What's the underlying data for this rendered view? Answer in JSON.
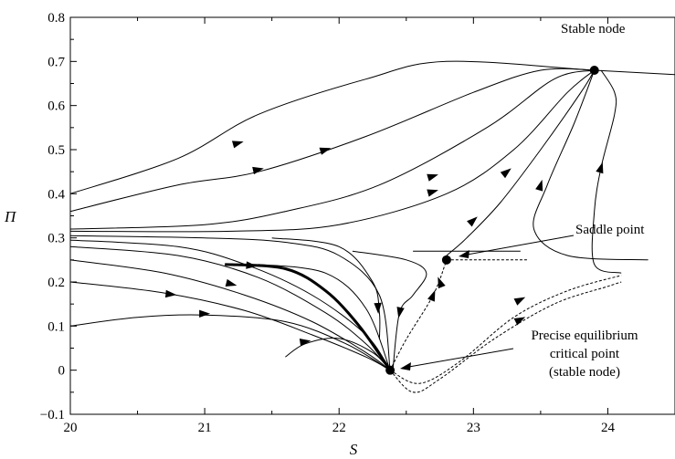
{
  "chart_data": {
    "type": "line",
    "title": "",
    "xlabel": "S",
    "ylabel": "Π",
    "xlim": [
      20,
      24.5
    ],
    "ylim": [
      -0.1,
      0.8
    ],
    "x_ticks": [
      "20",
      "21",
      "22",
      "23",
      "24"
    ],
    "y_ticks": [
      "−0.1",
      "0",
      "0.1",
      "0.2",
      "0.3",
      "0.4",
      "0.5",
      "0.6",
      "0.7",
      "0.8"
    ],
    "grid": false,
    "points": [
      {
        "name": "stable-node",
        "x": 23.9,
        "y": 0.68
      },
      {
        "name": "saddle-point",
        "x": 22.8,
        "y": 0.25
      },
      {
        "name": "precise-equilibrium",
        "x": 22.38,
        "y": 0.0
      }
    ],
    "annotations": [
      {
        "name": "stable-node-label",
        "lines": [
          "Stable node"
        ]
      },
      {
        "name": "saddle-point-label",
        "lines": [
          "Saddle point"
        ]
      },
      {
        "name": "equilibrium-label",
        "lines": [
          "Precise equilibrium",
          "critical point",
          "(stable node)"
        ]
      }
    ],
    "series": [
      {
        "style": "solid",
        "points": [
          [
            20,
            0.4
          ],
          [
            20.8,
            0.48
          ],
          [
            21.4,
            0.58
          ],
          [
            22.2,
            0.66
          ],
          [
            22.8,
            0.7
          ],
          [
            23.9,
            0.68
          ],
          [
            24.5,
            0.67
          ]
        ]
      },
      {
        "style": "solid",
        "points": [
          [
            20,
            0.36
          ],
          [
            20.8,
            0.42
          ],
          [
            21.4,
            0.45
          ],
          [
            22.2,
            0.53
          ],
          [
            23.0,
            0.63
          ],
          [
            23.5,
            0.68
          ],
          [
            23.9,
            0.68
          ]
        ]
      },
      {
        "style": "solid",
        "points": [
          [
            20,
            0.32
          ],
          [
            21.0,
            0.33
          ],
          [
            21.6,
            0.36
          ],
          [
            22.3,
            0.42
          ],
          [
            23.1,
            0.55
          ],
          [
            23.6,
            0.66
          ],
          [
            23.9,
            0.68
          ]
        ]
      },
      {
        "style": "solid",
        "points": [
          [
            20,
            0.315
          ],
          [
            21.2,
            0.315
          ],
          [
            22.0,
            0.33
          ],
          [
            22.8,
            0.4
          ],
          [
            23.3,
            0.5
          ],
          [
            23.7,
            0.63
          ],
          [
            23.9,
            0.68
          ]
        ]
      },
      {
        "style": "solid",
        "points": [
          [
            22.8,
            0.26
          ],
          [
            22.95,
            0.3
          ],
          [
            23.2,
            0.38
          ],
          [
            23.5,
            0.5
          ],
          [
            23.8,
            0.63
          ],
          [
            23.9,
            0.68
          ]
        ]
      },
      {
        "style": "solid",
        "points": [
          [
            24.3,
            0.25
          ],
          [
            23.7,
            0.26
          ],
          [
            23.45,
            0.32
          ],
          [
            23.55,
            0.42
          ],
          [
            23.75,
            0.56
          ],
          [
            23.9,
            0.68
          ]
        ]
      },
      {
        "style": "solid",
        "points": [
          [
            24.1,
            0.22
          ],
          [
            23.9,
            0.24
          ],
          [
            23.9,
            0.36
          ],
          [
            23.95,
            0.46
          ],
          [
            24.05,
            0.58
          ],
          [
            24.05,
            0.63
          ],
          [
            23.95,
            0.68
          ]
        ]
      },
      {
        "style": "solid",
        "points": [
          [
            20,
            0.305
          ],
          [
            21.0,
            0.3
          ],
          [
            21.6,
            0.29
          ],
          [
            22.0,
            0.26
          ],
          [
            22.3,
            0.17
          ],
          [
            22.38,
            0.0
          ]
        ]
      },
      {
        "style": "solid",
        "points": [
          [
            20,
            0.295
          ],
          [
            20.8,
            0.28
          ],
          [
            21.3,
            0.24
          ],
          [
            21.8,
            0.17
          ],
          [
            22.2,
            0.08
          ],
          [
            22.38,
            0.0
          ]
        ]
      },
      {
        "style": "solid",
        "points": [
          [
            20,
            0.28
          ],
          [
            20.8,
            0.26
          ],
          [
            21.4,
            0.21
          ],
          [
            21.9,
            0.13
          ],
          [
            22.2,
            0.06
          ],
          [
            22.38,
            0.0
          ]
        ]
      },
      {
        "style": "solid",
        "points": [
          [
            20,
            0.25
          ],
          [
            20.7,
            0.22
          ],
          [
            21.3,
            0.17
          ],
          [
            21.8,
            0.11
          ],
          [
            22.2,
            0.04
          ],
          [
            22.38,
            0.0
          ]
        ]
      },
      {
        "style": "solid",
        "points": [
          [
            20,
            0.2
          ],
          [
            20.7,
            0.175
          ],
          [
            21.3,
            0.135
          ],
          [
            21.8,
            0.08
          ],
          [
            22.2,
            0.03
          ],
          [
            22.38,
            0.0
          ]
        ]
      },
      {
        "style": "solid",
        "points": [
          [
            20,
            0.1
          ],
          [
            20.5,
            0.12
          ],
          [
            21.0,
            0.125
          ],
          [
            21.6,
            0.11
          ],
          [
            22.05,
            0.06
          ],
          [
            22.38,
            0.0
          ]
        ]
      },
      {
        "style": "solid",
        "points": [
          [
            21.6,
            0.03
          ],
          [
            21.75,
            0.06
          ],
          [
            22.0,
            0.072
          ],
          [
            22.25,
            0.04
          ],
          [
            22.38,
            0.0
          ]
        ]
      },
      {
        "style": "thick",
        "points": [
          [
            21.15,
            0.24
          ],
          [
            21.6,
            0.23
          ],
          [
            21.9,
            0.18
          ],
          [
            22.15,
            0.1
          ],
          [
            22.38,
            0.0
          ]
        ]
      },
      {
        "style": "solid",
        "points": [
          [
            21.4,
            0.24
          ],
          [
            21.9,
            0.22
          ],
          [
            22.2,
            0.14
          ],
          [
            22.38,
            0.0
          ]
        ]
      },
      {
        "style": "solid",
        "points": [
          [
            21.5,
            0.3
          ],
          [
            22.0,
            0.28
          ],
          [
            22.25,
            0.2
          ],
          [
            22.3,
            0.13
          ],
          [
            22.3,
            0.07
          ]
        ]
      },
      {
        "style": "solid",
        "points": [
          [
            22.55,
            0.27
          ],
          [
            22.9,
            0.27
          ],
          [
            23.35,
            0.27
          ]
        ]
      },
      {
        "style": "solid",
        "points": [
          [
            22.1,
            0.27
          ],
          [
            22.5,
            0.25
          ],
          [
            22.65,
            0.22
          ],
          [
            22.55,
            0.17
          ],
          [
            22.45,
            0.13
          ],
          [
            22.4,
            0.0
          ]
        ]
      },
      {
        "style": "dashed",
        "points": [
          [
            22.38,
            0.0
          ],
          [
            22.5,
            0.07
          ],
          [
            22.7,
            0.17
          ],
          [
            22.8,
            0.25
          ]
        ]
      },
      {
        "style": "dashed",
        "points": [
          [
            22.8,
            0.25
          ],
          [
            23.05,
            0.25
          ],
          [
            23.4,
            0.25
          ]
        ]
      },
      {
        "style": "dashed",
        "points": [
          [
            22.38,
            0.0
          ],
          [
            22.55,
            -0.05
          ],
          [
            22.75,
            -0.02
          ],
          [
            23.15,
            0.07
          ],
          [
            23.6,
            0.15
          ],
          [
            24.0,
            0.19
          ],
          [
            24.1,
            0.2
          ]
        ]
      },
      {
        "style": "dashed",
        "points": [
          [
            22.38,
            0.0
          ],
          [
            22.6,
            -0.03
          ],
          [
            22.9,
            0.02
          ],
          [
            23.3,
            0.12
          ],
          [
            23.7,
            0.18
          ],
          [
            24.1,
            0.215
          ]
        ]
      }
    ],
    "arrows": [
      {
        "x": 21.25,
        "y": 0.515,
        "dx": 1,
        "dy": 0.28
      },
      {
        "x": 21.4,
        "y": 0.455,
        "dx": 1,
        "dy": 0.22
      },
      {
        "x": 21.9,
        "y": 0.5,
        "dx": 1,
        "dy": 0.3
      },
      {
        "x": 22.7,
        "y": 0.44,
        "dx": 1,
        "dy": 0.3
      },
      {
        "x": 22.7,
        "y": 0.405,
        "dx": 1,
        "dy": 0.28
      },
      {
        "x": 23.25,
        "y": 0.45,
        "dx": 1,
        "dy": 0.8
      },
      {
        "x": 23.0,
        "y": 0.34,
        "dx": 1,
        "dy": 0.9
      },
      {
        "x": 23.5,
        "y": 0.42,
        "dx": 0.3,
        "dy": 1
      },
      {
        "x": 23.95,
        "y": 0.46,
        "dx": 0.3,
        "dy": 1
      },
      {
        "x": 20.75,
        "y": 0.172,
        "dx": 1,
        "dy": -0.1
      },
      {
        "x": 21.2,
        "y": 0.195,
        "dx": 1,
        "dy": -0.25
      },
      {
        "x": 21.0,
        "y": 0.128,
        "dx": 1,
        "dy": 0.0
      },
      {
        "x": 21.35,
        "y": 0.237,
        "dx": 1,
        "dy": -0.1
      },
      {
        "x": 21.75,
        "y": 0.065,
        "dx": 1,
        "dy": 0.15
      },
      {
        "x": 22.29,
        "y": 0.14,
        "dx": 0.05,
        "dy": -1
      },
      {
        "x": 22.45,
        "y": 0.13,
        "dx": -0.2,
        "dy": -1
      },
      {
        "x": 22.7,
        "y": 0.17,
        "dx": 0.4,
        "dy": 1
      },
      {
        "x": 22.75,
        "y": 0.2,
        "dx": -0.4,
        "dy": 1
      },
      {
        "x": 23.35,
        "y": 0.16,
        "dx": 1,
        "dy": 0.5
      },
      {
        "x": 23.35,
        "y": 0.115,
        "dx": 1,
        "dy": 0.5
      }
    ]
  }
}
